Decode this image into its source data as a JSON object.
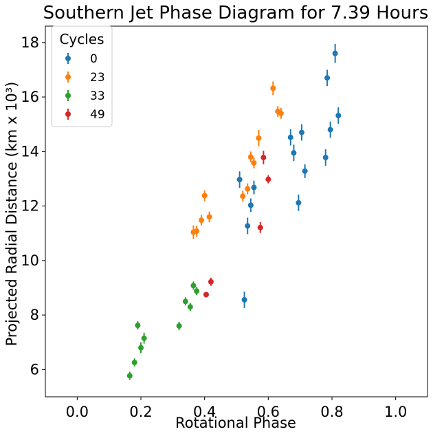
{
  "chart_data": {
    "type": "scatter",
    "title": "Southern Jet Phase Diagram for 7.39 Hours",
    "xlabel": "Rotational Phase",
    "ylabel": "Projected Radial Distance (km x 10³)",
    "xlim": [
      -0.1,
      1.1
    ],
    "ylim": [
      5.0,
      18.6
    ],
    "xticks": [
      0.0,
      0.2,
      0.4,
      0.6,
      0.8,
      1.0
    ],
    "xtick_labels": [
      "0.0",
      "0.2",
      "0.4",
      "0.6",
      "0.8",
      "1.0"
    ],
    "yticks": [
      6,
      8,
      10,
      12,
      14,
      16,
      18
    ],
    "ytick_labels": [
      "6",
      "8",
      "10",
      "12",
      "14",
      "16",
      "18"
    ],
    "grid": false,
    "legend": {
      "title": "Cycles",
      "position": "top-left"
    },
    "series": [
      {
        "name": "0",
        "color": "#1f77b4",
        "points": [
          [
            0.81,
            17.6,
            0.35
          ],
          [
            0.785,
            16.7,
            0.3
          ],
          [
            0.82,
            15.32,
            0.3
          ],
          [
            0.795,
            14.8,
            0.3
          ],
          [
            0.705,
            14.7,
            0.3
          ],
          [
            0.67,
            14.52,
            0.3
          ],
          [
            0.68,
            13.95,
            0.3
          ],
          [
            0.78,
            13.78,
            0.3
          ],
          [
            0.715,
            13.28,
            0.25
          ],
          [
            0.51,
            12.97,
            0.3
          ],
          [
            0.555,
            12.68,
            0.25
          ],
          [
            0.545,
            12.03,
            0.25
          ],
          [
            0.695,
            12.12,
            0.3
          ],
          [
            0.535,
            11.27,
            0.3
          ],
          [
            0.525,
            8.56,
            0.3
          ]
        ]
      },
      {
        "name": "23",
        "color": "#ff7f0e",
        "points": [
          [
            0.615,
            16.32,
            0.25
          ],
          [
            0.63,
            15.47,
            0.2
          ],
          [
            0.64,
            15.4,
            0.2
          ],
          [
            0.57,
            14.49,
            0.3
          ],
          [
            0.545,
            13.8,
            0.2
          ],
          [
            0.555,
            13.58,
            0.2
          ],
          [
            0.535,
            12.63,
            0.2
          ],
          [
            0.52,
            12.36,
            0.2
          ],
          [
            0.4,
            12.38,
            0.2
          ],
          [
            0.415,
            11.6,
            0.2
          ],
          [
            0.39,
            11.48,
            0.2
          ],
          [
            0.365,
            11.04,
            0.25
          ],
          [
            0.375,
            11.08,
            0.2
          ]
        ]
      },
      {
        "name": "33",
        "color": "#2ca02c",
        "points": [
          [
            0.365,
            9.08,
            0.15
          ],
          [
            0.375,
            8.88,
            0.15
          ],
          [
            0.34,
            8.5,
            0.15
          ],
          [
            0.355,
            8.3,
            0.15
          ],
          [
            0.32,
            7.6,
            0.15
          ],
          [
            0.19,
            7.62,
            0.15
          ],
          [
            0.21,
            7.15,
            0.2
          ],
          [
            0.2,
            6.8,
            0.2
          ],
          [
            0.18,
            6.26,
            0.15
          ],
          [
            0.165,
            5.77,
            0.15
          ]
        ]
      },
      {
        "name": "49",
        "color": "#d62728",
        "points": [
          [
            0.585,
            13.78,
            0.25
          ],
          [
            0.6,
            12.98,
            0.15
          ],
          [
            0.575,
            11.21,
            0.2
          ],
          [
            0.42,
            9.22,
            0.15
          ],
          [
            0.405,
            8.75,
            0.1
          ]
        ]
      }
    ]
  }
}
